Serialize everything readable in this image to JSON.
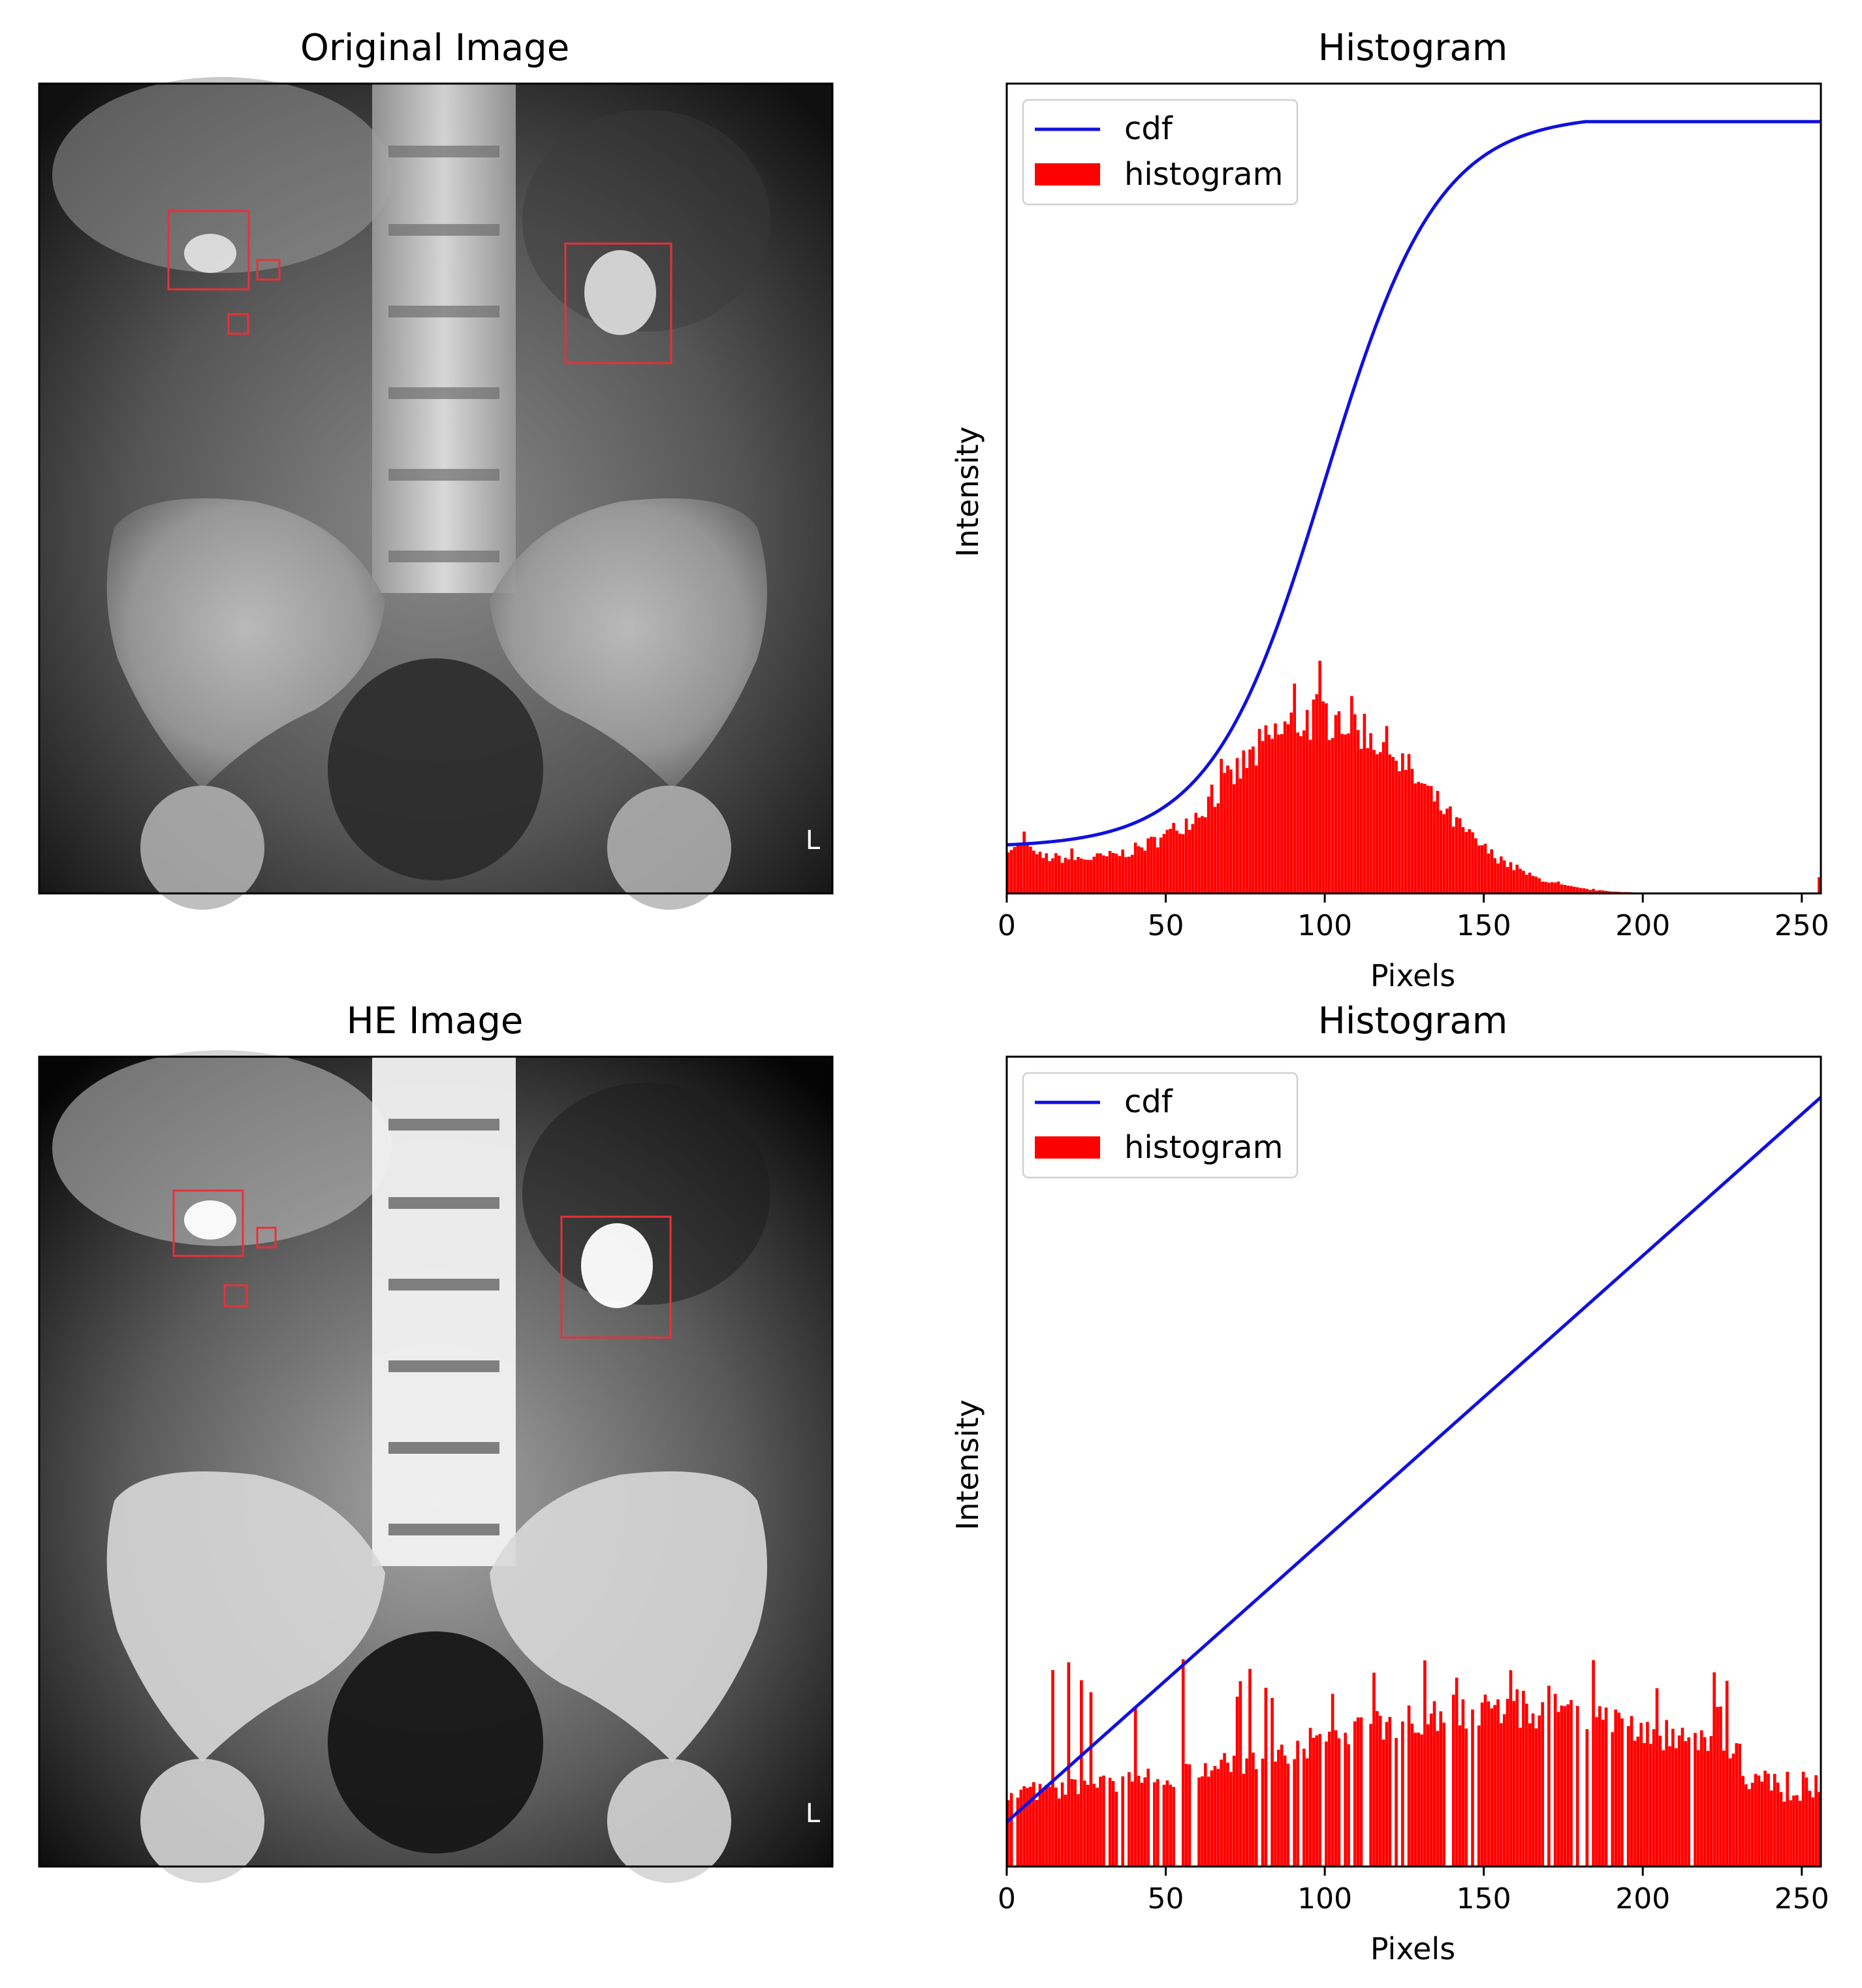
{
  "panels": [
    {
      "id": "original",
      "title": "Original Image",
      "corner_letter": "L",
      "image_variant": "original",
      "box_color": "#e8303a"
    },
    {
      "id": "he",
      "title": "HE Image",
      "corner_letter": "L",
      "image_variant": "equalized",
      "box_color": "#e8303a"
    }
  ],
  "chart_data": [
    {
      "type": "bar",
      "title": "Histogram",
      "xlabel": "Pixels",
      "ylabel": "Intensity",
      "xlim": [
        0,
        256
      ],
      "xticks": [
        0,
        50,
        100,
        150,
        200,
        250
      ],
      "yticks_shown": false,
      "grid": false,
      "legend": {
        "placement": "top-left",
        "entries": [
          "cdf",
          "histogram"
        ]
      },
      "series": [
        {
          "name": "cdf",
          "kind": "line",
          "color": "#1010e0",
          "shape": "sigmoid",
          "center": 100,
          "spread": 32,
          "start_fraction": 0.06,
          "end_fraction": 0.953
        },
        {
          "name": "histogram",
          "kind": "bar",
          "color": "#ff0000",
          "shape": "peak",
          "peak_x": 100,
          "peak_fraction": 0.22,
          "spread_left": 32,
          "spread_right": 30,
          "floor_fraction": 0.05,
          "zero_after": 210,
          "spike_at_end": 0.02
        }
      ]
    },
    {
      "type": "bar",
      "title": "Histogram",
      "xlabel": "Pixels",
      "ylabel": "Intensity",
      "xlim": [
        0,
        256
      ],
      "xticks": [
        0,
        50,
        100,
        150,
        200,
        250
      ],
      "yticks_shown": false,
      "grid": false,
      "legend": {
        "placement": "top-left",
        "entries": [
          "cdf",
          "histogram"
        ]
      },
      "series": [
        {
          "name": "cdf",
          "kind": "line",
          "color": "#1010e0",
          "shape": "linear",
          "start_fraction": 0.055,
          "end_fraction": 0.95
        },
        {
          "name": "histogram",
          "kind": "bar",
          "color": "#ff0000",
          "shape": "sparse-plateau",
          "peak_x": 155,
          "base_fraction": 0.09,
          "peak_fraction": 0.2,
          "spike_fraction": 0.25
        }
      ]
    }
  ]
}
